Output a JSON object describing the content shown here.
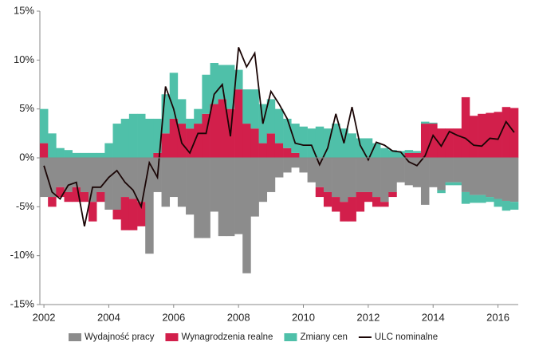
{
  "chart_data": {
    "type": "bar",
    "x": [
      2002,
      2002.25,
      2002.5,
      2002.75,
      2003,
      2003.25,
      2003.5,
      2003.75,
      2004,
      2004.25,
      2004.5,
      2004.75,
      2005,
      2005.25,
      2005.5,
      2005.75,
      2006,
      2006.25,
      2006.5,
      2006.75,
      2007,
      2007.25,
      2007.5,
      2007.75,
      2008,
      2008.25,
      2008.5,
      2008.75,
      2009,
      2009.25,
      2009.5,
      2009.75,
      2010,
      2010.25,
      2010.5,
      2010.75,
      2011,
      2011.25,
      2011.5,
      2011.75,
      2012,
      2012.25,
      2012.5,
      2012.75,
      2013,
      2013.25,
      2013.5,
      2013.75,
      2014,
      2014.25,
      2014.5,
      2014.75,
      2015,
      2015.25,
      2015.5,
      2015.75,
      2016,
      2016.25,
      2016.5
    ],
    "xlim": [
      2001.875,
      2016.625
    ],
    "xticks": [
      2002,
      2004,
      2006,
      2008,
      2010,
      2012,
      2014,
      2016
    ],
    "ylim": [
      -15,
      15
    ],
    "yticks": [
      {
        "value": -15,
        "label": "-15%"
      },
      {
        "value": -10,
        "label": "-10%"
      },
      {
        "value": -5,
        "label": "-5%"
      },
      {
        "value": 0,
        "label": "0%"
      },
      {
        "value": 5,
        "label": "5%"
      },
      {
        "value": 10,
        "label": "10%"
      },
      {
        "value": 15,
        "label": "15%"
      }
    ],
    "series": [
      {
        "name": "Wydajność pracy",
        "color": "#8c8c8c",
        "type": "bar",
        "values": [
          -4,
          -4,
          -3,
          -3.5,
          -3,
          -3.5,
          -4.5,
          -3.5,
          -5.3,
          -5.3,
          -4,
          -4.2,
          -4.5,
          -9.8,
          -3.5,
          -5,
          -4,
          -5,
          -5.8,
          -8.2,
          -8.2,
          -5.5,
          -8,
          -8,
          -7.8,
          -11.8,
          -6,
          -4.5,
          -3.5,
          -2,
          -1.5,
          -1,
          -1.5,
          -2.5,
          -3,
          -3.5,
          -4,
          -4.5,
          -4,
          -3.5,
          -3.5,
          -4,
          -4.5,
          -3.5,
          -2.5,
          -2.8,
          -3,
          -4.8,
          -3,
          -3.3,
          -2.5,
          -2.5,
          -3.5,
          -3.8,
          -3.8,
          -4,
          -4.2,
          -4.4,
          -4.5
        ]
      },
      {
        "name": "Wynagrodzenia realne",
        "color": "#d21f4b",
        "type": "bar",
        "values": [
          1.5,
          -1,
          -1,
          -1,
          -1.5,
          -1,
          -2,
          -1,
          0,
          -1,
          -3.4,
          -3.2,
          -2.5,
          0,
          0.5,
          2.5,
          4,
          3.5,
          3,
          3.5,
          4.5,
          5.5,
          6,
          5,
          7,
          3.5,
          3,
          1.5,
          2.5,
          1.5,
          1,
          0.5,
          0,
          0,
          -1,
          -1.5,
          -1.5,
          -2,
          -2.5,
          -2,
          -1,
          -1,
          -0.5,
          -0.5,
          0,
          0.5,
          0.5,
          3.5,
          3.5,
          3,
          3,
          3,
          6.2,
          4.3,
          4.5,
          4.6,
          4.7,
          5.2,
          5.1
        ]
      },
      {
        "name": "Zmiany cen",
        "color": "#4fc0a9",
        "type": "bar",
        "values": [
          3.5,
          2.5,
          1,
          0.8,
          0.5,
          0.5,
          0.5,
          0.5,
          1.5,
          3.5,
          4,
          4.5,
          4.5,
          4,
          3.5,
          4,
          4.7,
          2.5,
          1,
          1.5,
          4,
          4.2,
          3.5,
          4.5,
          2,
          3.5,
          4,
          4,
          3.5,
          3.5,
          3,
          3,
          3.2,
          3,
          3.2,
          3,
          3.5,
          3,
          2.5,
          2,
          2,
          1.5,
          1,
          0.8,
          0.7,
          0.3,
          0.2,
          0.2,
          0.1,
          -0.3,
          -0.3,
          -0.3,
          -1.2,
          -0.8,
          -0.8,
          -0.5,
          -0.8,
          -1,
          -0.8
        ]
      },
      {
        "name": "ULC nominalne",
        "color": "#1a0505",
        "type": "line",
        "values": [
          -0.8,
          -3.5,
          -4.2,
          -2.8,
          -2.5,
          -7,
          -3,
          -3,
          -2,
          -1.3,
          -2.5,
          -3.3,
          -5,
          -0.5,
          -2,
          7.3,
          5,
          1.5,
          0.5,
          2.5,
          2.5,
          6.5,
          7.5,
          2.2,
          11.3,
          9.3,
          10.7,
          3.5,
          6.8,
          5.5,
          4,
          1.5,
          1.3,
          1.3,
          -0.7,
          1,
          4.5,
          1.5,
          5.2,
          1.3,
          -0.2,
          1.6,
          1.3,
          0.7,
          0.6,
          -0.4,
          -0.8,
          0.2,
          2.3,
          1.2,
          2.7,
          2.3,
          2,
          1.3,
          1.2,
          2,
          1.9,
          3.7,
          2.6
        ]
      }
    ]
  }
}
